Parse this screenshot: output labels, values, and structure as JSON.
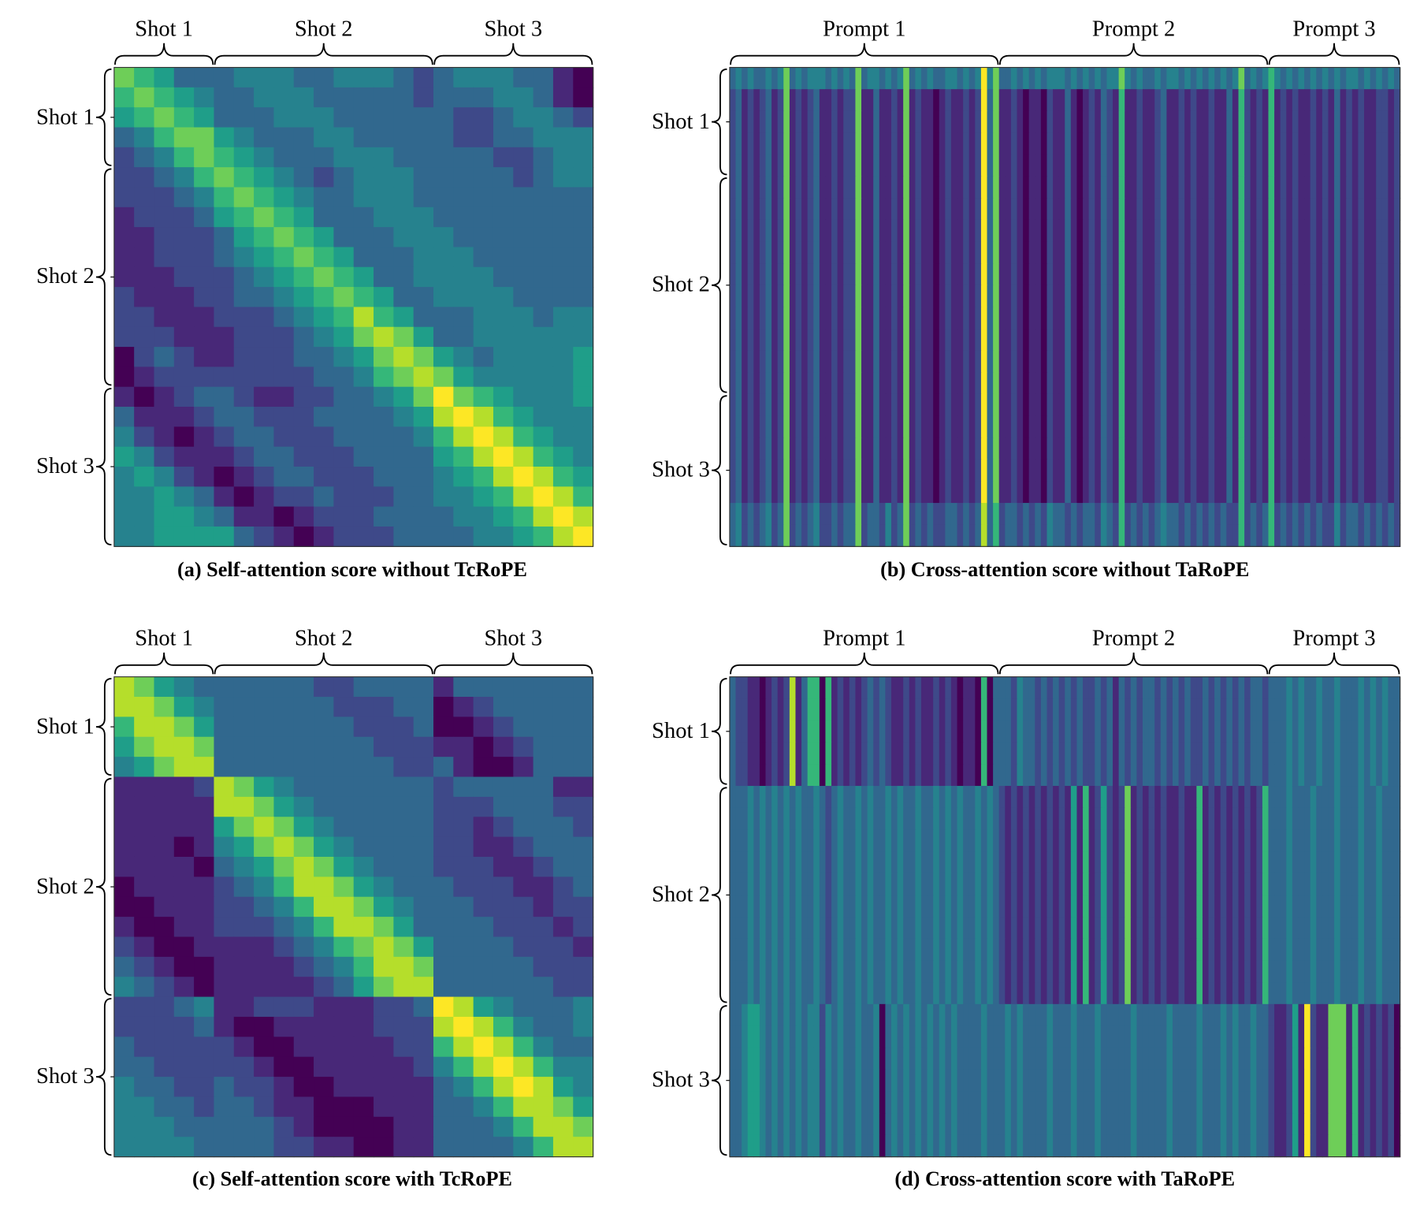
{
  "colormap": "viridis",
  "levels": [
    "#440154",
    "#482878",
    "#3e4989",
    "#31688e",
    "#26828e",
    "#1f9e89",
    "#35b779",
    "#6ece58",
    "#b5de2b",
    "#fde725"
  ],
  "chart_data": [
    {
      "type": "heatmap",
      "caption": "(a) Self-attention score without TcRoPE",
      "x_groups": [
        {
          "label": "Shot 1",
          "size": 5
        },
        {
          "label": "Shot 2",
          "size": 11
        },
        {
          "label": "Shot 3",
          "size": 8
        }
      ],
      "y_groups": [
        {
          "label": "Shot 1",
          "size": 5
        },
        {
          "label": "Shot 2",
          "size": 11
        },
        {
          "label": "Shot 3",
          "size": 8
        }
      ],
      "matrix": [
        "765333444334443234443310",
        "676543344433333233344310",
        "567653334443333332234432",
        "346775433344333332233444",
        "234676543334443333322344",
        "223467654323444333332344",
        "222346765433444333333333",
        "122235676533344433333333",
        "112223567653334443333333",
        "112223456765333444333333",
        "111222345676533444433333",
        "211122334567653344443333",
        "221112223456865333444344",
        "222111222345787533444444",
        "023211222334578754344445",
        "012222222233467875444445",
        "101233211223345797654445",
        "311123322233334589865444",
        "421012332223333468986544",
        "542111233222333356898654",
        "454210123322233345689865",
        "445431012232223344568986",
        "445543110122233334456898",
        "445555321012223333445689"
      ]
    },
    {
      "type": "heatmap",
      "caption": "(b) Cross-attention score without TaRoPE",
      "x_groups": [
        {
          "label": "Prompt 1",
          "size": 45
        },
        {
          "label": "Prompt 2",
          "size": 45
        },
        {
          "label": "Prompt 3",
          "size": 22
        }
      ],
      "y_groups": [
        {
          "label": "Shot 1",
          "size": 5
        },
        {
          "label": "Shot 2",
          "size": 10
        },
        {
          "label": "Shot 3",
          "size": 7
        }
      ],
      "row_profiles": {
        "T": "3434334347343444343437344343473434334434349473343434344434343434474343343443434343434734346434343434343443434343",
        "A": "2312123127121231121227113112171211012112129371121011021131012132161121123112121121131621216121211212131212112212",
        "C": "3423234237232342232337233242372323223323238362332323243323233243262323234332323232322623236232323232242332323232"
      },
      "rows": [
        "T",
        "A",
        "A",
        "A",
        "A",
        "A",
        "A",
        "A",
        "A",
        "A",
        "A",
        "A",
        "A",
        "A",
        "A",
        "A",
        "A",
        "A",
        "A",
        "A",
        "C",
        "C"
      ]
    },
    {
      "type": "heatmap",
      "caption": "(c) Self-attention score with TcRoPE",
      "x_groups": [
        {
          "label": "Shot 1",
          "size": 5
        },
        {
          "label": "Shot 2",
          "size": 11
        },
        {
          "label": "Shot 3",
          "size": 8
        }
      ],
      "y_groups": [
        {
          "label": "Shot 1",
          "size": 5
        },
        {
          "label": "Shot 2",
          "size": 11
        },
        {
          "label": "Shot 3",
          "size": 8
        }
      ],
      "matrix": [
        "875433333322333313333333",
        "887543333332223301233333",
        "688753333333222300123333",
        "578873333333322211012333",
        "457883333333332231001333",
        "111128754333333323333311",
        "111118875433333322233322",
        "111115787543333322123332",
        "111014578754333322112333",
        "111103457875433322211233",
        "011112346887543332221123",
        "001112234688754333222122",
        "100112223468875333322212",
        "210011112346787533332221",
        "321001111234688733333222",
        "432101111123578833333322",
        "222341122211122398543334",
        "222231001111122289864334",
        "322222100111112268986433",
        "332222210011111246898644",
        "433223221001111134689854",
        "443323321100011133468875",
        "444333332100001133346887",
        "444433332211001133334688"
      ]
    },
    {
      "type": "heatmap",
      "caption": "(d) Cross-attention score with TaRoPE",
      "x_groups": [
        {
          "label": "Prompt 1",
          "size": 45
        },
        {
          "label": "Prompt 2",
          "size": 45
        },
        {
          "label": "Prompt 3",
          "size": 22
        }
      ],
      "y_groups": [
        {
          "label": "Shot 1",
          "size": 5
        },
        {
          "label": "Shot 2",
          "size": 10
        },
        {
          "label": "Shot 3",
          "size": 7
        }
      ],
      "row_profiles": {
        "S1": "3221101212813660612121232321121211212101106033324332323232322323132323323232322323232323323334343343343334343433",
        "S2": "3334343434343343234334343343433433434343343432121212121215161252127121212112116121212121263334333433343334334333",
        "S3": "3345543434343442434334334034343434343433334333434333343334333433333433333433334333434334332112519211777161212120"
      },
      "rows": [
        "S1",
        "S1",
        "S1",
        "S1",
        "S1",
        "S2",
        "S2",
        "S2",
        "S2",
        "S2",
        "S2",
        "S2",
        "S2",
        "S2",
        "S2",
        "S3",
        "S3",
        "S3",
        "S3",
        "S3",
        "S3",
        "S3"
      ]
    }
  ]
}
